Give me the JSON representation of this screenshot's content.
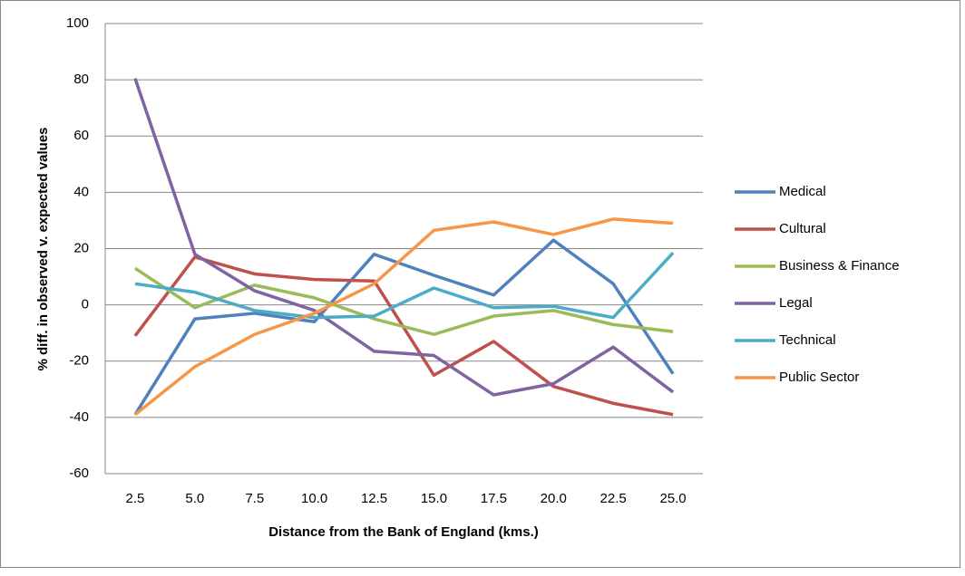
{
  "chart_data": {
    "type": "line",
    "y_label": "% diff. in observed v. expected values",
    "x_label": "Distance from the Bank of England (kms.)",
    "categories": [
      "2.5",
      "5.0",
      "7.5",
      "10.0",
      "12.5",
      "15.0",
      "17.5",
      "20.0",
      "22.5",
      "25.0"
    ],
    "series": [
      {
        "name": "Medical",
        "color": "#4f81bd",
        "values": [
          -39,
          -5,
          -3,
          -6,
          18,
          10.5,
          3.5,
          23,
          7.5,
          -24.5
        ]
      },
      {
        "name": "Cultural",
        "color": "#c0504d",
        "values": [
          -11,
          17,
          11,
          9,
          8.5,
          -25,
          -13,
          -29,
          -35,
          -39
        ]
      },
      {
        "name": "Business & Finance",
        "color": "#9bbb59",
        "values": [
          13,
          -1,
          7,
          2.5,
          -5,
          -10.5,
          -4,
          -2,
          -7,
          -9.5
        ]
      },
      {
        "name": "Legal",
        "color": "#8064a2",
        "values": [
          80.5,
          18,
          5,
          -2,
          -16.5,
          -18,
          -32,
          -28,
          -15,
          -31
        ]
      },
      {
        "name": "Technical",
        "color": "#4bacc6",
        "values": [
          7.5,
          4.5,
          -2,
          -4.5,
          -4,
          6,
          -1,
          -0.5,
          -4.5,
          18.5
        ]
      },
      {
        "name": "Public Sector",
        "color": "#f79646",
        "values": [
          -39,
          -22,
          -10.5,
          -3,
          7.5,
          26.5,
          29.5,
          25,
          30.5,
          29
        ]
      }
    ],
    "ylim": [
      -60,
      100
    ],
    "yticks": [
      -60,
      -40,
      -20,
      0,
      20,
      40,
      60,
      80,
      100
    ],
    "grid": true,
    "legend": "right"
  }
}
